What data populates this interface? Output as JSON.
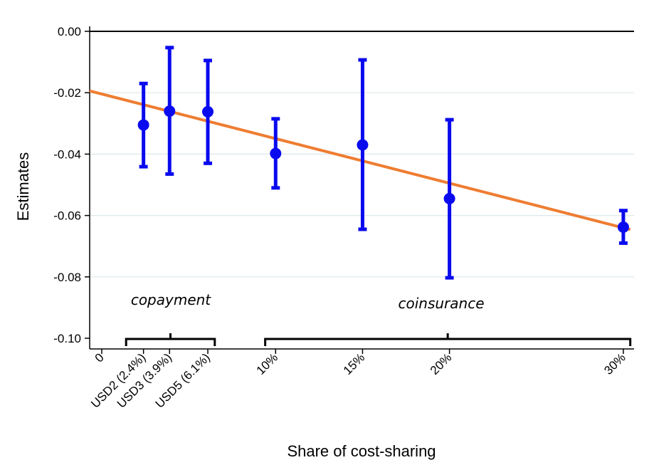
{
  "chart_data": {
    "type": "scatter",
    "title": "",
    "xlabel": "Share of cost-sharing",
    "ylabel": "Estimates",
    "ylim": [
      -0.1,
      0.0
    ],
    "xlim": [
      0,
      30
    ],
    "yticks": [
      "0.00",
      "-0.02",
      "-0.04",
      "-0.06",
      "-0.08",
      "-0.10"
    ],
    "ytick_values": [
      0.0,
      -0.02,
      -0.04,
      -0.06,
      -0.08,
      -0.1
    ],
    "xticks": [
      {
        "label": "0",
        "x": 0
      },
      {
        "label": "USD2 (2.4%)",
        "x": 2.4
      },
      {
        "label": "USD3 (3.9%)",
        "x": 3.9
      },
      {
        "label": "USD5 (6.1%)",
        "x": 6.1
      },
      {
        "label": "10%",
        "x": 10
      },
      {
        "label": "15%",
        "x": 15
      },
      {
        "label": "20%",
        "x": 20
      },
      {
        "label": "30%",
        "x": 30
      }
    ],
    "points": [
      {
        "x": 2.4,
        "y": -0.0305,
        "lo": -0.0441,
        "hi": -0.017
      },
      {
        "x": 3.9,
        "y": -0.026,
        "lo": -0.0465,
        "hi": -0.0053
      },
      {
        "x": 6.1,
        "y": -0.0262,
        "lo": -0.043,
        "hi": -0.0095
      },
      {
        "x": 10,
        "y": -0.0398,
        "lo": -0.051,
        "hi": -0.0285
      },
      {
        "x": 15,
        "y": -0.037,
        "lo": -0.0645,
        "hi": -0.0093
      },
      {
        "x": 20,
        "y": -0.0545,
        "lo": -0.0803,
        "hi": -0.0288
      },
      {
        "x": 30,
        "y": -0.0638,
        "lo": -0.069,
        "hi": -0.0584
      }
    ],
    "fit_line": {
      "x": [
        -0.7,
        30.4
      ],
      "y": [
        -0.0194,
        -0.0646
      ]
    },
    "groups": [
      {
        "label": "copayment",
        "from": 1.4,
        "to": 6.5
      },
      {
        "label": "coinsurance",
        "from": 9.4,
        "to": 30.4
      }
    ],
    "zero_line": 0.0,
    "colors": {
      "points": "#0a0aee",
      "fit": "#ee7d32",
      "grid": "#dde7ec",
      "axis": "#000000"
    }
  }
}
